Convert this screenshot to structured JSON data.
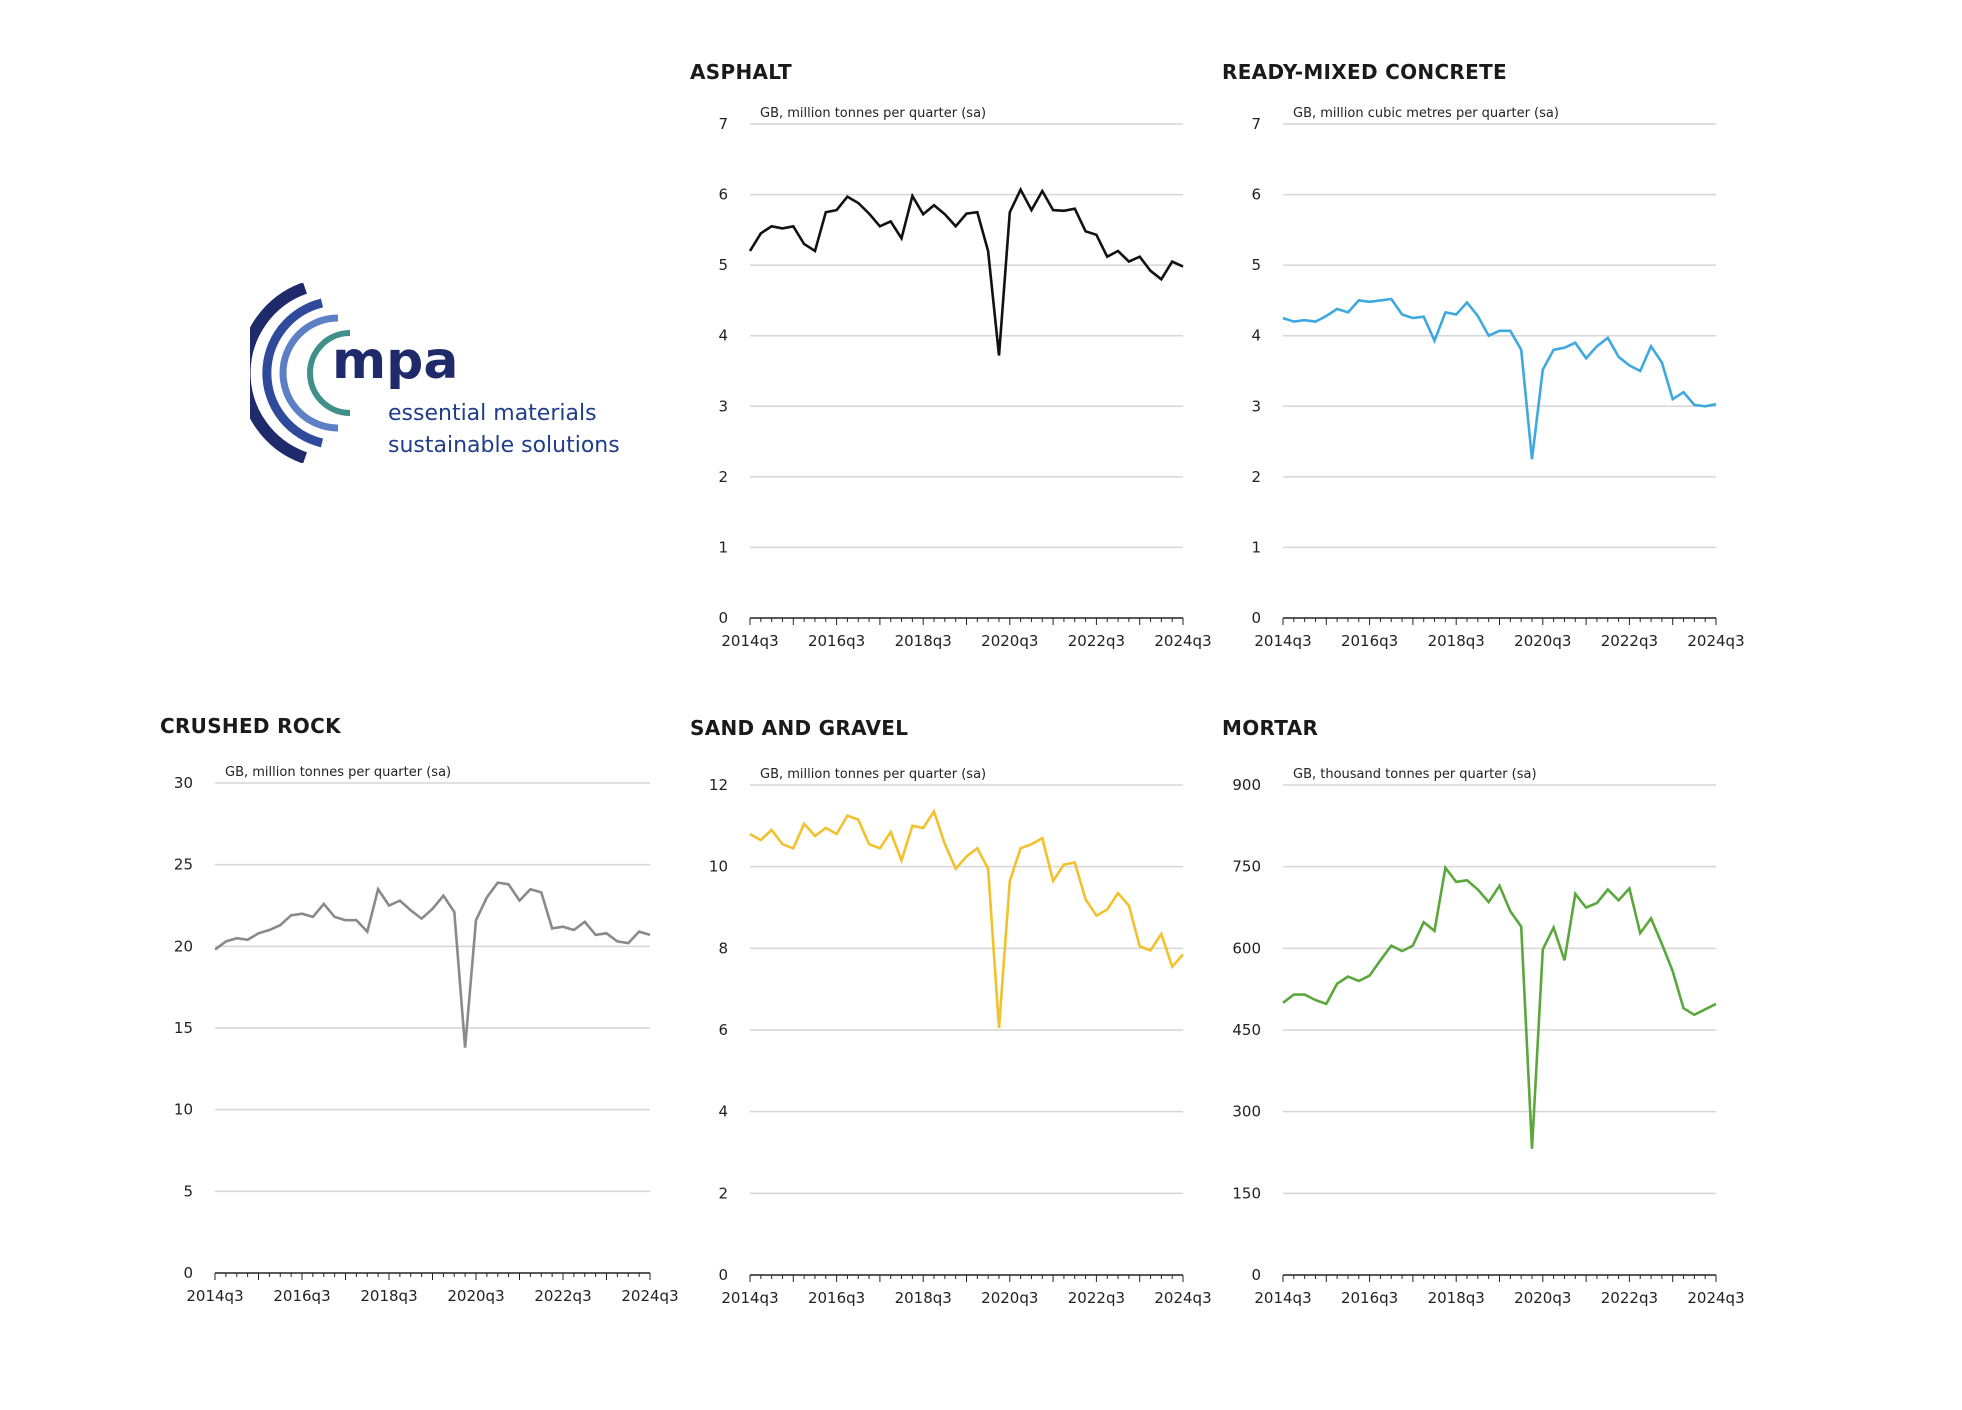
{
  "logo": {
    "wordmark": "mpa",
    "tagline_1": "essential materials",
    "tagline_2": "sustainable solutions",
    "colors": [
      "#1f2a6b",
      "#2f4a9a",
      "#5d7fc4",
      "#3f8f8a"
    ]
  },
  "chart_data": [
    {
      "id": "asphalt",
      "type": "line",
      "title": "ASPHALT",
      "ylabel": "GB, million tonnes per quarter (sa)",
      "color": "#111111",
      "ylim": [
        0,
        7
      ],
      "yticks": [
        0,
        1,
        2,
        3,
        4,
        5,
        6,
        7
      ],
      "xticklabels": [
        "2014q3",
        "2016q3",
        "2018q3",
        "2020q3",
        "2022q3",
        "2024q3"
      ],
      "x_start": "2014q3",
      "x_end": "2024q3",
      "grid": true,
      "values": [
        5.2,
        5.45,
        5.55,
        5.52,
        5.55,
        5.3,
        5.2,
        5.75,
        5.78,
        5.97,
        5.88,
        5.73,
        5.55,
        5.62,
        5.38,
        5.98,
        5.72,
        5.85,
        5.72,
        5.55,
        5.73,
        5.75,
        5.2,
        3.72,
        5.75,
        6.07,
        5.78,
        6.05,
        5.78,
        5.77,
        5.8,
        5.48,
        5.43,
        5.12,
        5.2,
        5.05,
        5.12,
        4.92,
        4.8,
        5.05,
        4.98
      ]
    },
    {
      "id": "ready-mixed-concrete",
      "type": "line",
      "title": "READY-MIXED CONCRETE",
      "ylabel": "GB, million cubic metres per quarter (sa)",
      "color": "#3fa9df",
      "ylim": [
        0,
        7
      ],
      "yticks": [
        0,
        1,
        2,
        3,
        4,
        5,
        6,
        7
      ],
      "xticklabels": [
        "2014q3",
        "2016q3",
        "2018q3",
        "2020q3",
        "2022q3",
        "2024q3"
      ],
      "x_start": "2014q3",
      "x_end": "2024q3",
      "grid": true,
      "values": [
        4.25,
        4.2,
        4.22,
        4.2,
        4.28,
        4.38,
        4.33,
        4.5,
        4.48,
        4.5,
        4.52,
        4.3,
        4.25,
        4.27,
        3.93,
        4.33,
        4.3,
        4.47,
        4.28,
        4.0,
        4.07,
        4.07,
        3.8,
        2.25,
        3.52,
        3.8,
        3.83,
        3.9,
        3.68,
        3.85,
        3.97,
        3.7,
        3.58,
        3.5,
        3.85,
        3.62,
        3.1,
        3.2,
        3.02,
        3.0,
        3.03
      ]
    },
    {
      "id": "crushed-rock",
      "type": "line",
      "title": "CRUSHED ROCK",
      "ylabel": "GB, million tonnes per quarter (sa)",
      "color": "#8a8a8a",
      "ylim": [
        0,
        30
      ],
      "yticks": [
        0,
        5,
        10,
        15,
        20,
        25,
        30
      ],
      "xticklabels": [
        "2014q3",
        "2016q3",
        "2018q3",
        "2020q3",
        "2022q3",
        "2024q3"
      ],
      "x_start": "2014q3",
      "x_end": "2024q3",
      "grid": true,
      "values": [
        19.8,
        20.3,
        20.5,
        20.4,
        20.8,
        21.0,
        21.3,
        21.9,
        22.0,
        21.8,
        22.6,
        21.8,
        21.6,
        21.6,
        20.9,
        23.5,
        22.5,
        22.8,
        22.2,
        21.7,
        22.3,
        23.1,
        22.1,
        13.8,
        21.6,
        23.0,
        23.9,
        23.8,
        22.8,
        23.5,
        23.3,
        21.1,
        21.2,
        21.0,
        21.5,
        20.7,
        20.8,
        20.3,
        20.2,
        20.9,
        20.7
      ]
    },
    {
      "id": "sand-and-gravel",
      "type": "line",
      "title": "SAND AND GRAVEL",
      "ylabel": "GB, million tonnes per quarter (sa)",
      "color": "#f2c12e",
      "ylim": [
        0,
        12
      ],
      "yticks": [
        0,
        2,
        4,
        6,
        8,
        10,
        12
      ],
      "xticklabels": [
        "2014q3",
        "2016q3",
        "2018q3",
        "2020q3",
        "2022q3",
        "2024q3"
      ],
      "x_start": "2014q3",
      "x_end": "2024q3",
      "grid": true,
      "values": [
        10.8,
        10.65,
        10.9,
        10.55,
        10.45,
        11.05,
        10.75,
        10.95,
        10.8,
        11.25,
        11.15,
        10.55,
        10.45,
        10.85,
        10.15,
        11.0,
        10.95,
        11.35,
        10.55,
        9.95,
        10.25,
        10.45,
        9.95,
        6.05,
        9.65,
        10.45,
        10.55,
        10.7,
        9.65,
        10.05,
        10.1,
        9.2,
        8.8,
        8.95,
        9.35,
        9.05,
        8.05,
        7.95,
        8.35,
        7.55,
        7.85
      ]
    },
    {
      "id": "mortar",
      "type": "line",
      "title": "MORTAR",
      "ylabel": "GB, thousand tonnes per quarter (sa)",
      "color": "#5aa83c",
      "ylim": [
        0,
        900
      ],
      "yticks": [
        0,
        150,
        300,
        450,
        600,
        750,
        900
      ],
      "xticklabels": [
        "2014q3",
        "2016q3",
        "2018q3",
        "2020q3",
        "2022q3",
        "2024q3"
      ],
      "x_start": "2014q3",
      "x_end": "2024q3",
      "grid": true,
      "values": [
        500,
        515,
        515,
        505,
        498,
        535,
        548,
        540,
        550,
        578,
        605,
        595,
        605,
        648,
        632,
        748,
        722,
        725,
        708,
        685,
        715,
        668,
        640,
        232,
        598,
        638,
        578,
        700,
        675,
        683,
        708,
        688,
        710,
        628,
        655,
        608,
        558,
        490,
        478,
        488,
        498
      ]
    }
  ]
}
